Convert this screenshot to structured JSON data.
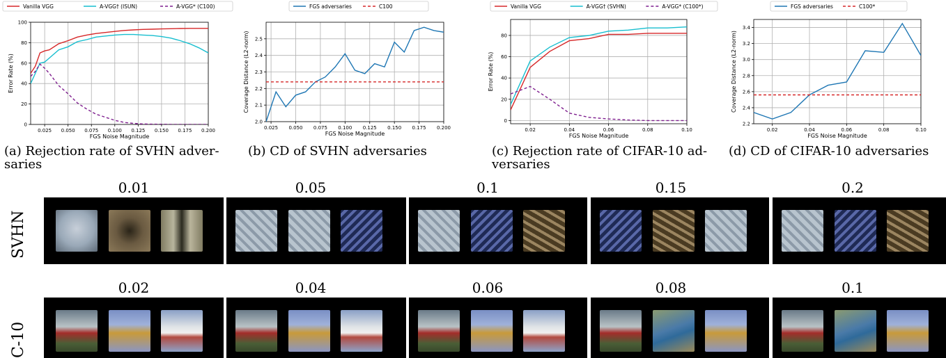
{
  "chart_data": [
    {
      "type": "line",
      "xlabel": "FGS Noise Magnitude",
      "ylabel": "Error Rate (%)",
      "xlim": [
        0.01,
        0.2
      ],
      "ylim": [
        0,
        100
      ],
      "xticks": [
        0.025,
        0.05,
        0.075,
        0.1,
        0.125,
        0.15,
        0.175,
        0.2
      ],
      "xtick_labels": [
        "0.025",
        "0.050",
        "0.075",
        "0.100",
        "0.125",
        "0.150",
        "0.175",
        "0.200"
      ],
      "yticks": [
        0,
        20,
        40,
        60,
        80,
        100
      ],
      "ytick_labels": [
        "0",
        "20",
        "40",
        "60",
        "80",
        "100"
      ],
      "grid": true,
      "legend_placement": "top",
      "series": [
        {
          "name": "Vanilla VGG",
          "color": "#d62728",
          "style": "solid",
          "x": [
            0.01,
            0.015,
            0.02,
            0.025,
            0.03,
            0.04,
            0.05,
            0.06,
            0.07,
            0.08,
            0.09,
            0.1,
            0.11,
            0.12,
            0.13,
            0.14,
            0.15,
            0.16,
            0.17,
            0.18,
            0.19,
            0.2
          ],
          "y": [
            50,
            57,
            70,
            72,
            73,
            79,
            82,
            85.5,
            87.5,
            89,
            90,
            91,
            92,
            92.5,
            93,
            93.2,
            93.5,
            93.7,
            93.9,
            94,
            94,
            94
          ]
        },
        {
          "name": "A-VGG† (ISUN)",
          "color": "#17becf",
          "style": "solid",
          "x": [
            0.01,
            0.015,
            0.02,
            0.025,
            0.03,
            0.04,
            0.05,
            0.06,
            0.07,
            0.08,
            0.09,
            0.1,
            0.11,
            0.12,
            0.13,
            0.14,
            0.15,
            0.16,
            0.17,
            0.18,
            0.19,
            0.2
          ],
          "y": [
            40,
            50,
            60,
            61,
            65,
            73,
            76,
            81,
            83,
            85.5,
            86.5,
            87.5,
            88,
            88,
            87.5,
            87,
            86,
            84.5,
            82,
            79,
            75,
            70
          ]
        },
        {
          "name": "A-VGG* (C100)",
          "color": "#7f1f8f",
          "style": "dashed",
          "x": [
            0.01,
            0.015,
            0.02,
            0.025,
            0.03,
            0.04,
            0.05,
            0.06,
            0.07,
            0.08,
            0.09,
            0.1,
            0.11,
            0.12,
            0.13,
            0.14,
            0.15,
            0.16,
            0.17,
            0.18,
            0.19,
            0.2
          ],
          "y": [
            47,
            52,
            59,
            55,
            50,
            38,
            30,
            21,
            15,
            10,
            7,
            4,
            2,
            1,
            0.5,
            0.3,
            0.2,
            0.1,
            0.1,
            0,
            0,
            0
          ]
        }
      ]
    },
    {
      "type": "line",
      "xlabel": "FGS Noise Magnitude",
      "ylabel": "Coverage Distance (L2-norm)",
      "xlim": [
        0.02,
        0.2
      ],
      "ylim": [
        2.0,
        2.6
      ],
      "xticks": [
        0.025,
        0.05,
        0.075,
        0.1,
        0.125,
        0.15,
        0.175,
        0.2
      ],
      "xtick_labels": [
        "0.025",
        "0.050",
        "0.075",
        "0.100",
        "0.125",
        "0.150",
        "0.175",
        "0.200"
      ],
      "yticks": [
        2.0,
        2.1,
        2.2,
        2.3,
        2.4,
        2.5
      ],
      "ytick_labels": [
        "2.0",
        "2.1",
        "2.2",
        "2.3",
        "2.4",
        "2.5"
      ],
      "grid": true,
      "legend_placement": "top",
      "series": [
        {
          "name": "FGS adversaries",
          "color": "#1f77b4",
          "style": "solid",
          "x": [
            0.02,
            0.03,
            0.04,
            0.05,
            0.06,
            0.07,
            0.08,
            0.09,
            0.1,
            0.11,
            0.12,
            0.13,
            0.14,
            0.15,
            0.16,
            0.17,
            0.18,
            0.19,
            0.2
          ],
          "y": [
            2.0,
            2.18,
            2.09,
            2.16,
            2.18,
            2.24,
            2.27,
            2.33,
            2.41,
            2.31,
            2.29,
            2.35,
            2.33,
            2.48,
            2.42,
            2.55,
            2.57,
            2.55,
            2.54
          ]
        },
        {
          "name": "C100",
          "color": "#d62728",
          "style": "dashed",
          "x": [
            0.02,
            0.2
          ],
          "y": [
            2.24,
            2.24
          ]
        }
      ]
    },
    {
      "type": "line",
      "xlabel": "FGS Noise Magnitude",
      "ylabel": "Error Rate (%)",
      "xlim": [
        0.01,
        0.1
      ],
      "ylim": [
        -3,
        95
      ],
      "xticks": [
        0.02,
        0.04,
        0.06,
        0.08,
        0.1
      ],
      "xtick_labels": [
        "0.02",
        "0.04",
        "0.06",
        "0.08",
        "0.10"
      ],
      "yticks": [
        0,
        20,
        40,
        60,
        80
      ],
      "ytick_labels": [
        "0",
        "20",
        "40",
        "60",
        "80"
      ],
      "grid": true,
      "legend_placement": "top",
      "series": [
        {
          "name": "Vanilla VGG",
          "color": "#d62728",
          "style": "solid",
          "x": [
            0.01,
            0.02,
            0.03,
            0.04,
            0.05,
            0.06,
            0.07,
            0.08,
            0.09,
            0.1
          ],
          "y": [
            10,
            50,
            65,
            75,
            77,
            81,
            81,
            82,
            82,
            82
          ]
        },
        {
          "name": "A-VGG† (SVHN)",
          "color": "#17becf",
          "style": "solid",
          "x": [
            0.01,
            0.02,
            0.03,
            0.04,
            0.05,
            0.06,
            0.07,
            0.08,
            0.09,
            0.1
          ],
          "y": [
            15,
            56,
            69,
            78,
            80,
            84,
            85,
            87,
            87,
            88
          ]
        },
        {
          "name": "A-VGG* (C100*)",
          "color": "#7f1f8f",
          "style": "dashed",
          "x": [
            0.01,
            0.02,
            0.03,
            0.04,
            0.05,
            0.06,
            0.07,
            0.08,
            0.09,
            0.1
          ],
          "y": [
            25,
            32,
            20,
            7,
            3,
            1.5,
            0.5,
            0,
            0,
            0
          ]
        }
      ]
    },
    {
      "type": "line",
      "xlabel": "FGS Noise Magnitude",
      "ylabel": "Coverage Distance (L2-norm)",
      "xlim": [
        0.01,
        0.1
      ],
      "ylim": [
        2.2,
        3.5
      ],
      "xticks": [
        0.02,
        0.04,
        0.06,
        0.08,
        0.1
      ],
      "xtick_labels": [
        "0.02",
        "0.04",
        "0.06",
        "0.08",
        "0.10"
      ],
      "yticks": [
        2.2,
        2.4,
        2.6,
        2.8,
        3.0,
        3.2,
        3.4
      ],
      "ytick_labels": [
        "2.2",
        "2.4",
        "2.6",
        "2.8",
        "3.0",
        "3.2",
        "3.4"
      ],
      "grid": true,
      "legend_placement": "top",
      "series": [
        {
          "name": "FGS adversaries",
          "color": "#1f77b4",
          "style": "solid",
          "x": [
            0.01,
            0.02,
            0.03,
            0.04,
            0.05,
            0.06,
            0.07,
            0.08,
            0.09,
            0.1
          ],
          "y": [
            2.34,
            2.26,
            2.34,
            2.56,
            2.68,
            2.72,
            3.11,
            3.09,
            3.45,
            3.05
          ]
        },
        {
          "name": "C100*",
          "color": "#d62728",
          "style": "dashed",
          "x": [
            0.01,
            0.1
          ],
          "y": [
            2.56,
            2.56
          ]
        }
      ]
    }
  ],
  "captions": [
    [
      "(a) Rejection rate of SVHN adver-",
      "saries"
    ],
    [
      "(b) CD of SVHN adversaries"
    ],
    [
      "(c) Rejection rate of CIFAR-10 ad-",
      "versaries"
    ],
    [
      "(d) CD of CIFAR-10 adversaries"
    ]
  ],
  "svhn_noise_labels": [
    "0.01",
    "0.05",
    "0.1",
    "0.15",
    "0.2"
  ],
  "cifar_noise_labels": [
    "0.02",
    "0.04",
    "0.06",
    "0.08",
    "0.1"
  ],
  "row_labels": {
    "svhn": "SVHN",
    "cifar": "C-10"
  }
}
